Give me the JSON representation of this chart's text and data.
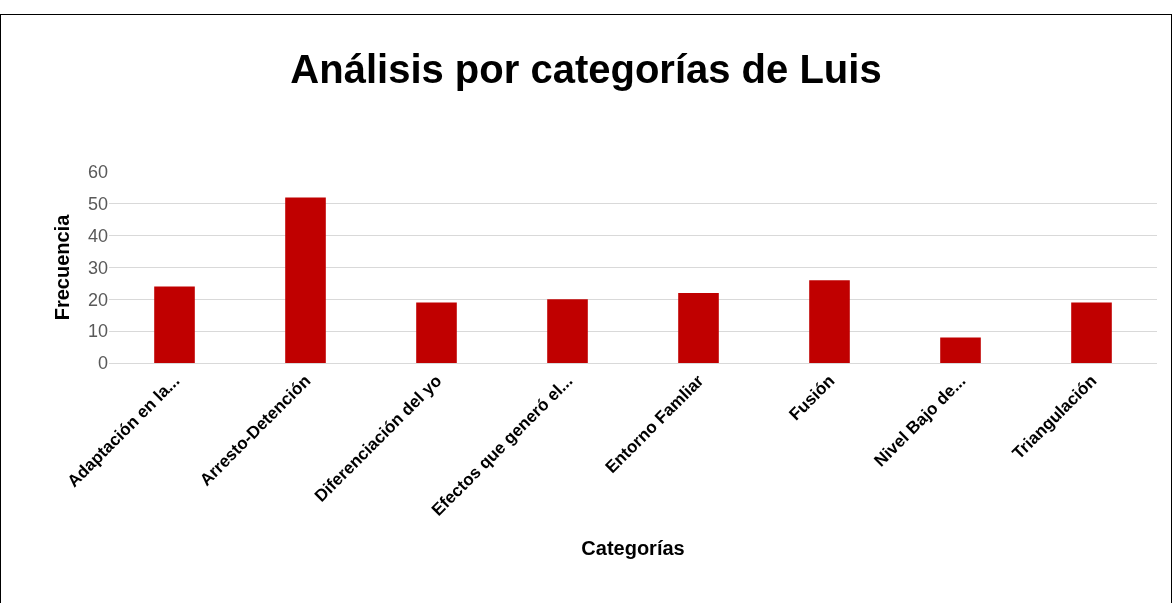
{
  "chart_data": {
    "type": "bar",
    "title": "Análisis por categorías de Luis",
    "xlabel": "Categorías",
    "ylabel": "Frecuencia",
    "categories": [
      "Adaptación en la...",
      "Arresto-Detención",
      "Diferenciación del yo",
      "Efectos que generó el...",
      "Entorno Famliar",
      "Fusión",
      "Nivel Bajo de...",
      "Triangulación"
    ],
    "values": [
      24,
      52,
      19,
      20,
      22,
      26,
      8,
      19
    ],
    "color": "#c00000",
    "ylim": [
      0,
      60
    ],
    "yticks": [
      0,
      10,
      20,
      30,
      40,
      50,
      60
    ],
    "grid": "y"
  }
}
